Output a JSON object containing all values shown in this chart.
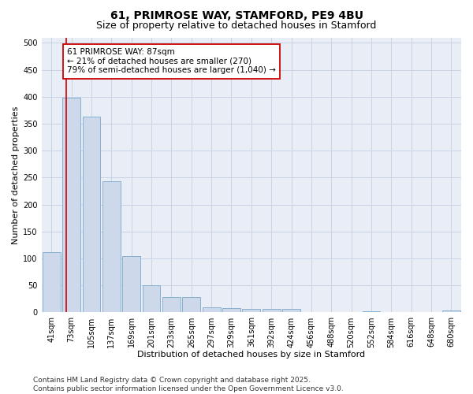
{
  "title_line1": "61, PRIMROSE WAY, STAMFORD, PE9 4BU",
  "title_line2": "Size of property relative to detached houses in Stamford",
  "xlabel": "Distribution of detached houses by size in Stamford",
  "ylabel": "Number of detached properties",
  "categories": [
    "41sqm",
    "73sqm",
    "105sqm",
    "137sqm",
    "169sqm",
    "201sqm",
    "233sqm",
    "265sqm",
    "297sqm",
    "329sqm",
    "361sqm",
    "392sqm",
    "424sqm",
    "456sqm",
    "488sqm",
    "520sqm",
    "552sqm",
    "584sqm",
    "616sqm",
    "648sqm",
    "680sqm"
  ],
  "values": [
    112,
    398,
    363,
    243,
    105,
    50,
    28,
    28,
    9,
    8,
    6,
    6,
    7,
    0,
    1,
    0,
    2,
    0,
    0,
    0,
    3
  ],
  "bar_color": "#cdd9eb",
  "bar_edge_color": "#7aa8cc",
  "vline_x": 0.72,
  "vline_color": "#cc0000",
  "annotation_text": "61 PRIMROSE WAY: 87sqm\n← 21% of detached houses are smaller (270)\n79% of semi-detached houses are larger (1,040) →",
  "annotation_box_color": "#ffffff",
  "annotation_box_edge_color": "#cc0000",
  "ylim": [
    0,
    510
  ],
  "yticks": [
    0,
    50,
    100,
    150,
    200,
    250,
    300,
    350,
    400,
    450,
    500
  ],
  "grid_color": "#c8d4e6",
  "bg_color": "#e8edf6",
  "footnote": "Contains HM Land Registry data © Crown copyright and database right 2025.\nContains public sector information licensed under the Open Government Licence v3.0.",
  "title_fontsize": 10,
  "subtitle_fontsize": 9,
  "axis_label_fontsize": 8,
  "tick_fontsize": 7,
  "annotation_fontsize": 7.5,
  "footnote_fontsize": 6.5
}
